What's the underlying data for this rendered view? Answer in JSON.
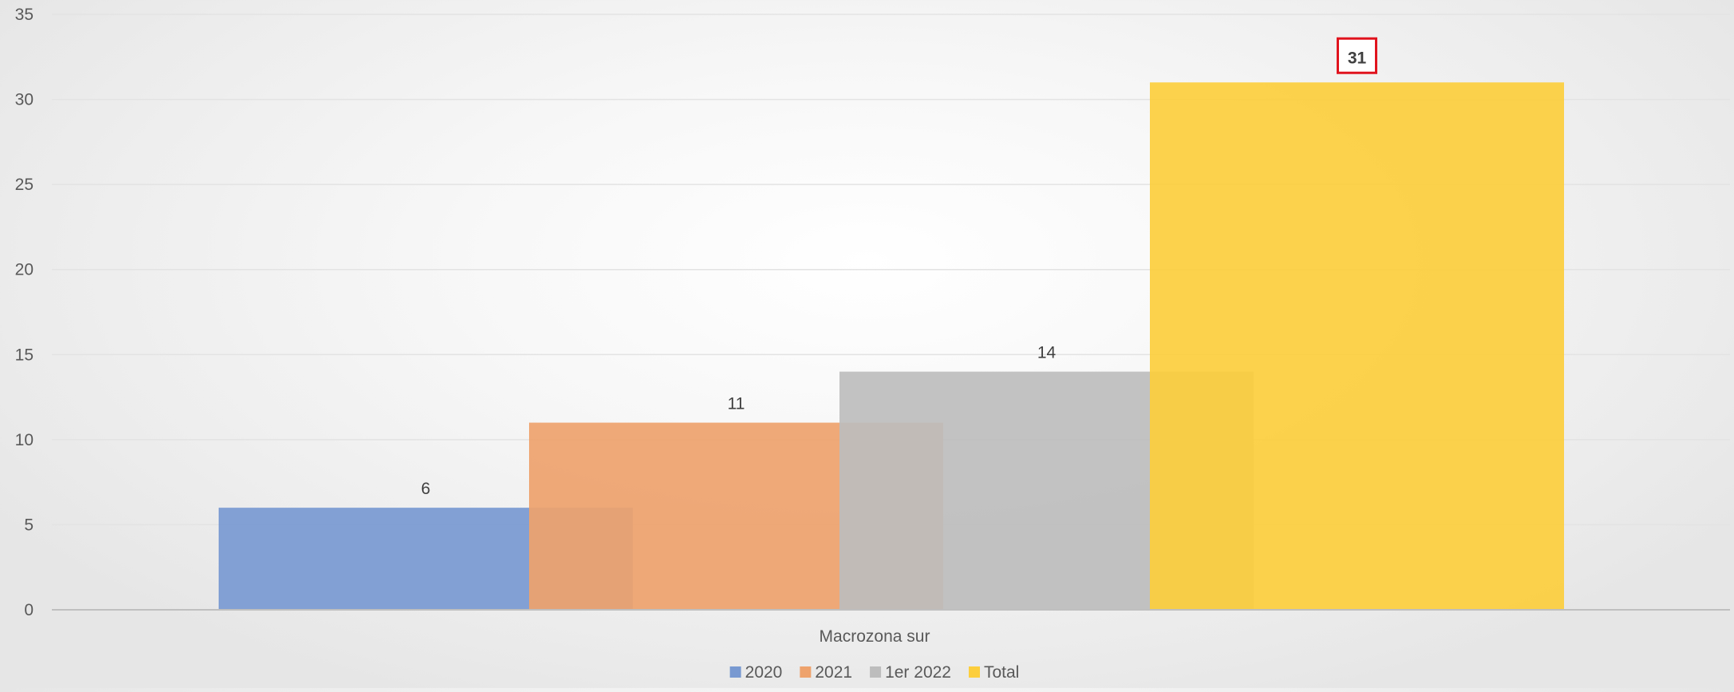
{
  "chart_data": {
    "type": "bar",
    "categories": [
      "Macrozona sur"
    ],
    "series": [
      {
        "name": "2020",
        "values": [
          6
        ],
        "color": "#7899d1"
      },
      {
        "name": "2021",
        "values": [
          11
        ],
        "color": "#eea26c"
      },
      {
        "name": "1er 2022",
        "values": [
          14
        ],
        "color": "#bdbdbd"
      },
      {
        "name": "Total",
        "values": [
          31
        ],
        "color": "#fcce3d"
      }
    ],
    "overlapping_bars": true,
    "ylim": [
      0,
      35
    ],
    "yticks": [
      0,
      5,
      10,
      15,
      20,
      25,
      30,
      35
    ],
    "grid": true,
    "legend_position": "bottom",
    "highlighted_label": "31",
    "highlight_color": "#e0141e",
    "xlabel": "",
    "ylabel": "",
    "title": ""
  }
}
